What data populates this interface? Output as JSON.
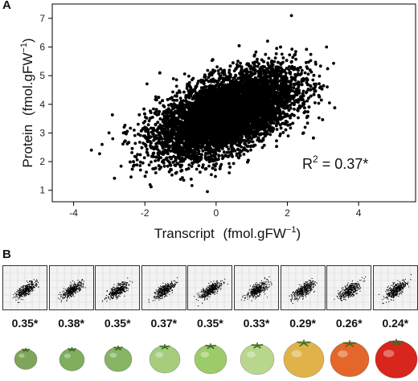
{
  "panels": {
    "a": "A",
    "b": "B"
  },
  "chart_data": [
    {
      "type": "scatter",
      "title": "",
      "xlabel": "Transcript",
      "xlabel_unit": "(fmol.gFW",
      "xlabel_exp": "−1",
      "xlabel_close": ")",
      "ylabel": "Protein",
      "ylabel_unit": "(fmol.gFW",
      "ylabel_exp": "−1",
      "ylabel_close": ")",
      "xlim": [
        -4.6,
        5.6
      ],
      "ylim": [
        0.6,
        7.5
      ],
      "xticks": [
        "-4",
        "-2",
        "0",
        "2",
        "4"
      ],
      "xtick_values": [
        -4,
        -2,
        0,
        2,
        4
      ],
      "yticks": [
        "1",
        "2",
        "3",
        "4",
        "5",
        "6",
        "7"
      ],
      "ytick_values": [
        1,
        2,
        3,
        4,
        5,
        6,
        7
      ],
      "annotation_base": "R",
      "annotation_exp": "2",
      "annotation_rest": " = 0.37*",
      "r_squared": 0.37,
      "point_color": "#000000",
      "grid": false,
      "data_description_points": {
        "x": [
          -3.5,
          -3.2,
          -2.9,
          -2.6,
          -2.3,
          -2.0,
          -1.7,
          -1.4,
          -1.1,
          -0.8,
          -0.5,
          -0.2,
          0.1,
          0.4,
          0.7,
          1.0,
          1.3,
          1.6,
          1.9,
          2.2,
          2.5,
          2.8,
          3.1
        ],
        "y": [
          2.4,
          2.6,
          2.8,
          3.0,
          3.1,
          3.2,
          3.3,
          3.4,
          3.5,
          3.6,
          3.7,
          3.8,
          3.9,
          4.0,
          4.1,
          4.3,
          4.4,
          4.6,
          4.7,
          4.9,
          5.1,
          5.4,
          6.0
        ]
      }
    },
    {
      "type": "scatter",
      "panel": "B",
      "series": [
        {
          "r2_label": "0.35*",
          "value": 0.35
        },
        {
          "r2_label": "0.38*",
          "value": 0.38
        },
        {
          "r2_label": "0.35*",
          "value": 0.35
        },
        {
          "r2_label": "0.37*",
          "value": 0.37
        },
        {
          "r2_label": "0.35*",
          "value": 0.35
        },
        {
          "r2_label": "0.33*",
          "value": 0.33
        },
        {
          "r2_label": "0.29*",
          "value": 0.29
        },
        {
          "r2_label": "0.26*",
          "value": 0.26
        },
        {
          "r2_label": "0.24*",
          "value": 0.24
        }
      ]
    }
  ],
  "tomatoes": [
    {
      "stage": 1,
      "color": "#7ea55a",
      "size": 0.35
    },
    {
      "stage": 2,
      "color": "#7fae5c",
      "size": 0.45
    },
    {
      "stage": 3,
      "color": "#86b565",
      "size": 0.52
    },
    {
      "stage": 4,
      "color": "#a6cd7c",
      "size": 0.65
    },
    {
      "stage": 5,
      "color": "#9ecb6a",
      "size": 0.72
    },
    {
      "stage": 6,
      "color": "#b9d68f",
      "size": 0.75
    },
    {
      "stage": 7,
      "color": "#e0b34a",
      "size": 1.0
    },
    {
      "stage": 8,
      "color": "#e5662a",
      "size": 0.95
    },
    {
      "stage": 9,
      "color": "#d8261c",
      "size": 1.05
    }
  ]
}
